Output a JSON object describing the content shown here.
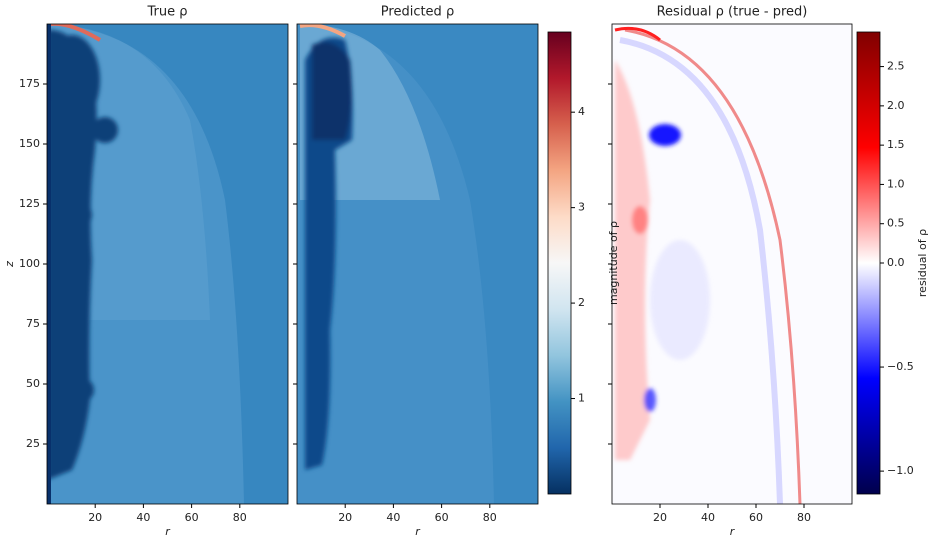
{
  "chart_data": [
    {
      "type": "heatmap",
      "title": "True ρ",
      "xlabel": "r",
      "ylabel": "z",
      "xlim": [
        0,
        100
      ],
      "xticks": [
        20,
        40,
        60,
        80
      ],
      "ylim": [
        0,
        200
      ],
      "yticks": [
        25,
        50,
        75,
        100,
        125,
        150,
        175
      ]
    },
    {
      "type": "heatmap",
      "title": "Predicted ρ",
      "xlabel": "r",
      "xlim": [
        0,
        100
      ],
      "xticks": [
        20,
        40,
        60,
        80
      ],
      "sharey": true,
      "colorbar": {
        "label": "magnitude of ρ",
        "colormap": "RdBu_r",
        "lim": [
          0,
          4.84
        ],
        "ticks": [
          1,
          2,
          3,
          4
        ]
      }
    },
    {
      "type": "heatmap",
      "title": "Residual ρ (true - pred)",
      "xlabel": "r",
      "xlim": [
        0,
        100
      ],
      "xticks": [
        20,
        40,
        60,
        80
      ],
      "sharey": true,
      "colorbar": {
        "label": "residual of ρ",
        "colormap": "seismic",
        "lim": [
          -1.11,
          2.94
        ],
        "center": 0,
        "ticks": [
          {
            "value": -1,
            "label": "−1.0"
          },
          {
            "value": -0.5,
            "label": "−0.5"
          },
          {
            "value": 0,
            "label": "0.0"
          },
          0.5,
          {
            "value": 1,
            "label": "1.0"
          },
          1.5,
          {
            "value": 2,
            "label": "2.0"
          },
          2.5
        ]
      }
    }
  ]
}
